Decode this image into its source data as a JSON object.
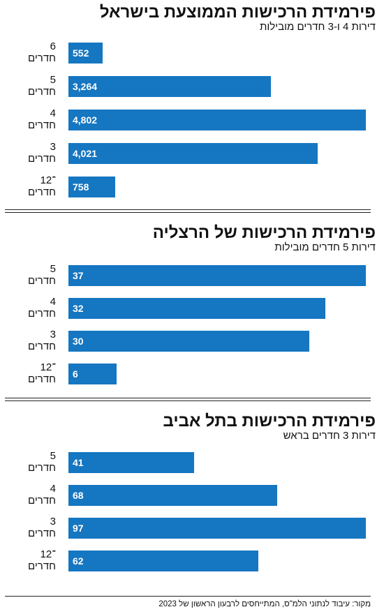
{
  "chart_data": [
    {
      "type": "bar",
      "title": "פירמידת הרכישות הממוצעת בישראל",
      "subtitle": "דירות 4 ו-3 חדרים מובילות",
      "categories": [
        [
          "6",
          "חדרים"
        ],
        [
          "5",
          "חדרים"
        ],
        [
          "4",
          "חדרים"
        ],
        [
          "3",
          "חדרים"
        ],
        [
          "1־2",
          "חדרים"
        ]
      ],
      "values": [
        552,
        3264,
        4802,
        4021,
        758
      ],
      "value_labels": [
        "552",
        "3,264",
        "4,802",
        "4,021",
        "758"
      ],
      "color": "#1576c1"
    },
    {
      "type": "bar",
      "title": "פירמידת הרכישות של הרצליה",
      "subtitle": "דירות 5 חדרים מובילות",
      "categories": [
        [
          "5",
          "חדרים"
        ],
        [
          "4",
          "חדרים"
        ],
        [
          "3",
          "חדרים"
        ],
        [
          "1־2",
          "חדרים"
        ]
      ],
      "values": [
        37,
        32,
        30,
        6
      ],
      "value_labels": [
        "37",
        "32",
        "30",
        "6"
      ],
      "color": "#1576c1"
    },
    {
      "type": "bar",
      "title": "פירמידת הרכישות בתל אביב",
      "subtitle": "דירות 3 חדרים בראש",
      "categories": [
        [
          "5",
          "חדרים"
        ],
        [
          "4",
          "חדרים"
        ],
        [
          "3",
          "חדרים"
        ],
        [
          "1־2",
          "חדרים"
        ]
      ],
      "values": [
        41,
        68,
        97,
        62
      ],
      "value_labels": [
        "41",
        "68",
        "97",
        "62"
      ],
      "color": "#1576c1"
    }
  ],
  "source": "מקור: עיבוד לנתוני הלמ\"ס, המתייחסים לרבעון הראשון של 2023"
}
